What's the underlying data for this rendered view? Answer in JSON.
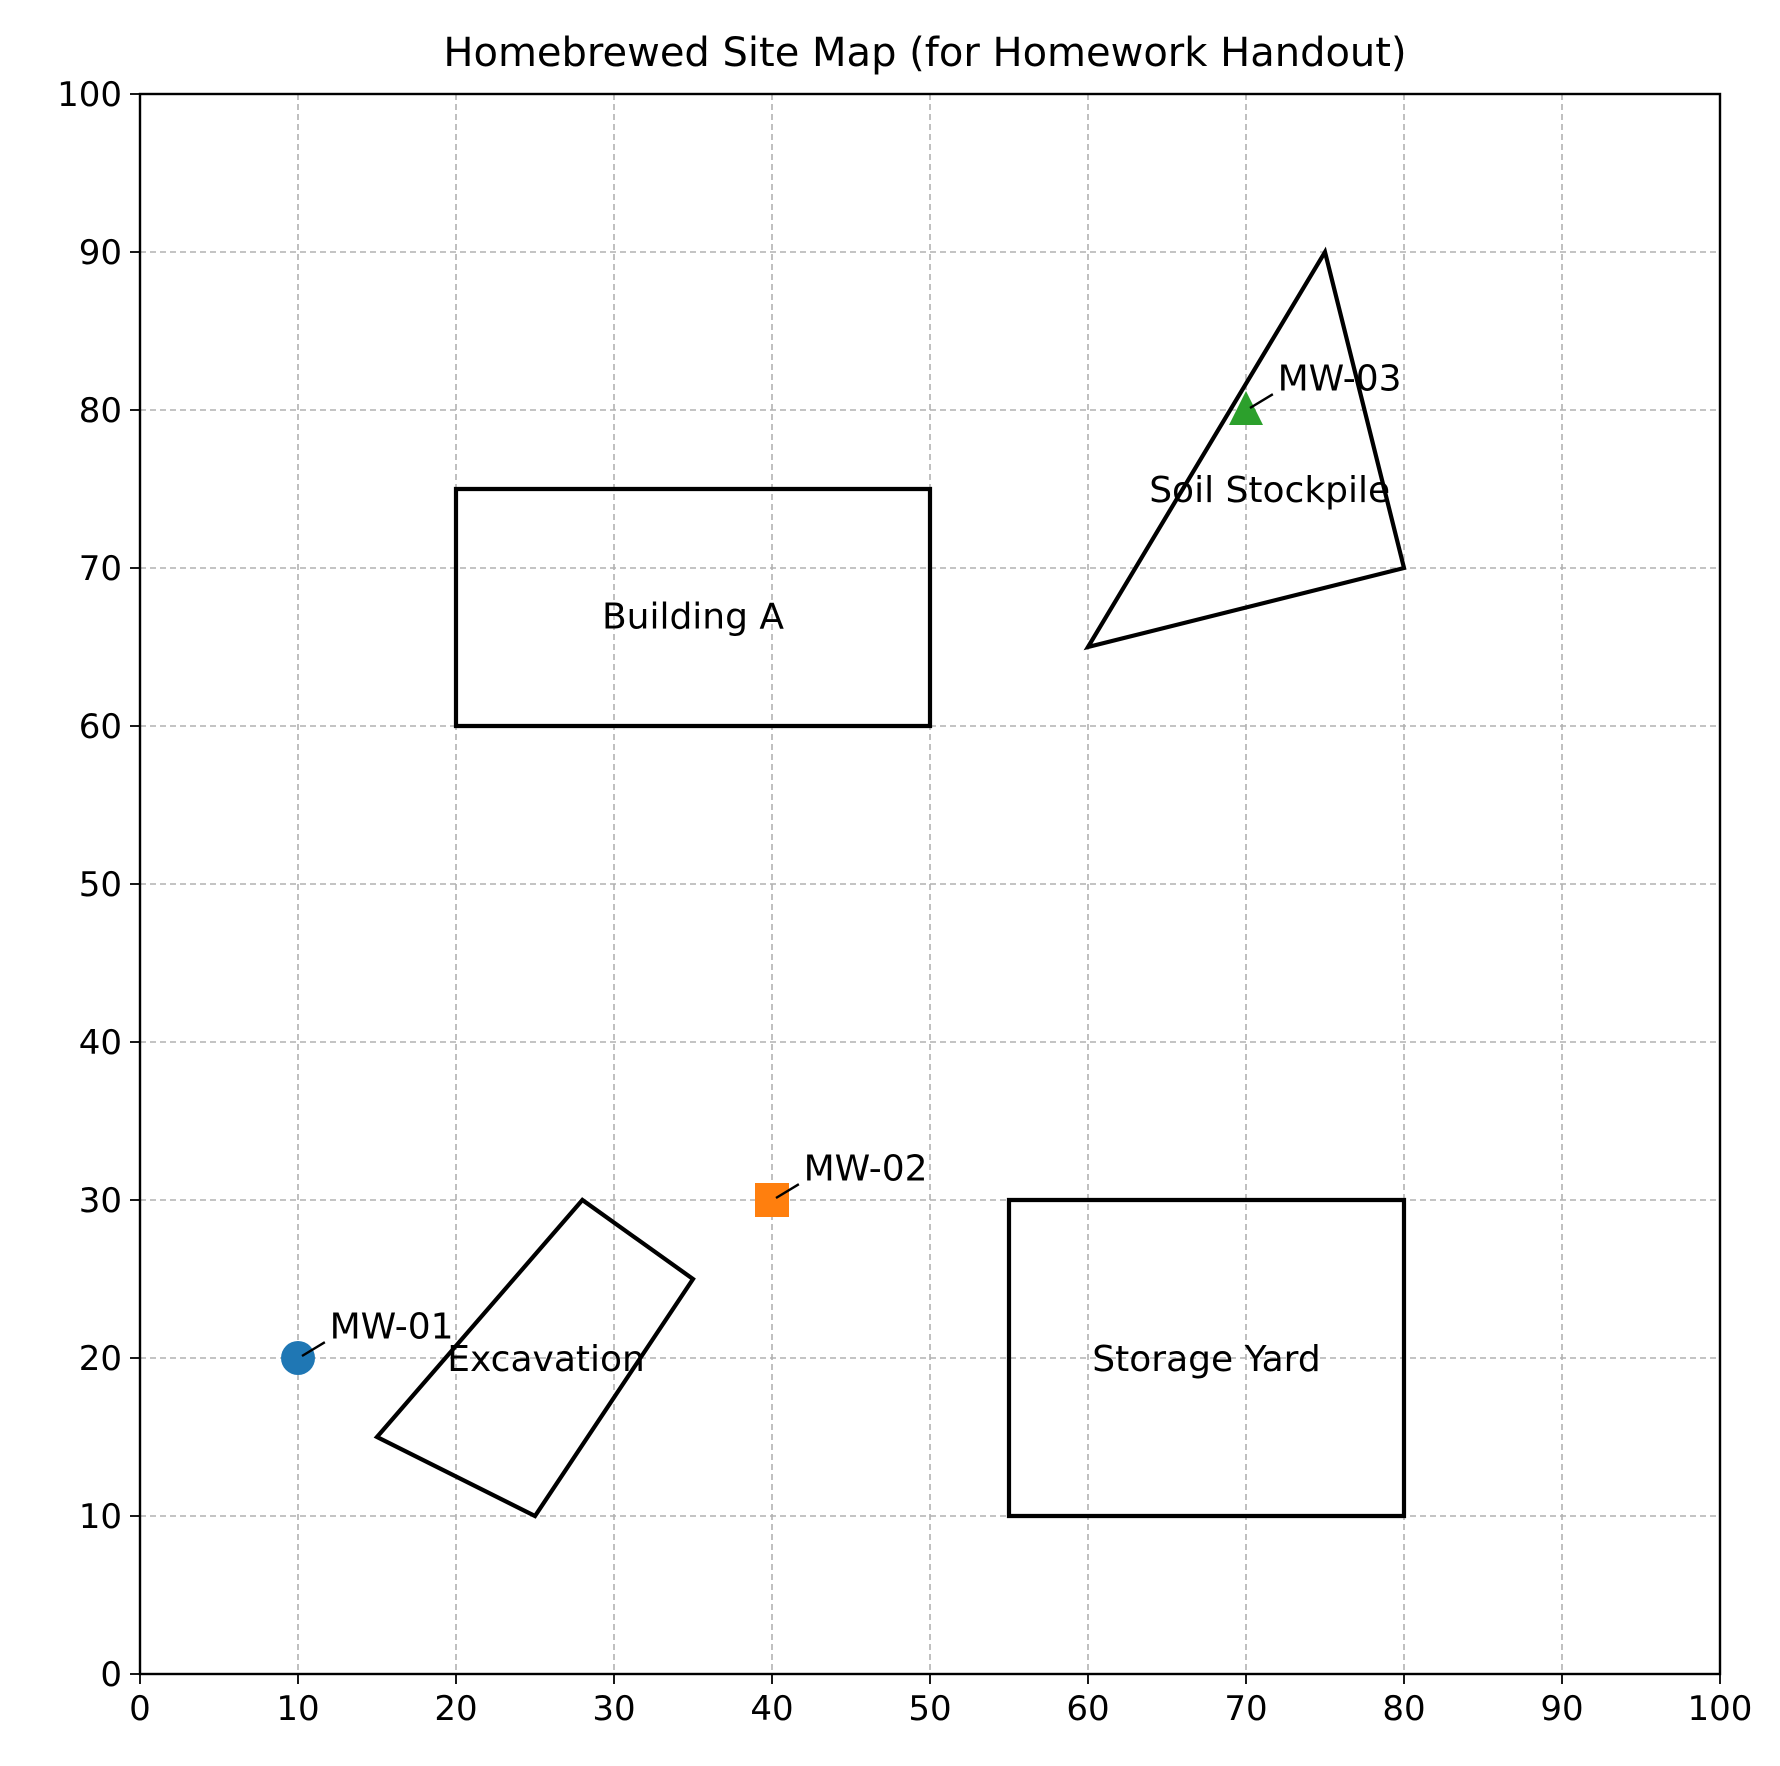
{
  "chart_data": {
    "type": "scatter",
    "title": "Homebrewed Site Map (for Homework Handout)",
    "xlabel": "",
    "ylabel": "",
    "xlim": [
      0,
      100
    ],
    "ylim": [
      0,
      100
    ],
    "xticks": [
      0,
      10,
      20,
      30,
      40,
      50,
      60,
      70,
      80,
      90,
      100
    ],
    "yticks": [
      0,
      10,
      20,
      30,
      40,
      50,
      60,
      70,
      80,
      90,
      100
    ],
    "grid": true,
    "features": [
      {
        "label": "Building A",
        "points": [
          [
            20,
            60
          ],
          [
            50,
            60
          ],
          [
            50,
            75
          ],
          [
            20,
            75
          ]
        ],
        "label_at": [
          35,
          67
        ]
      },
      {
        "label": "Soil Stockpile",
        "points": [
          [
            60,
            65
          ],
          [
            80,
            70
          ],
          [
            75,
            90
          ]
        ],
        "label_at": [
          71.5,
          75
        ]
      },
      {
        "label": "Excavation",
        "points": [
          [
            15,
            15
          ],
          [
            25,
            10
          ],
          [
            35,
            25
          ],
          [
            28,
            30
          ]
        ],
        "label_at": [
          25.7,
          20
        ]
      },
      {
        "label": "Storage Yard",
        "points": [
          [
            55,
            10
          ],
          [
            80,
            10
          ],
          [
            80,
            30
          ],
          [
            55,
            30
          ]
        ],
        "label_at": [
          67.5,
          20
        ]
      }
    ],
    "wells": [
      {
        "label": "MW-01",
        "x": 10,
        "y": 20,
        "marker": "circle",
        "color": "#1f77b4"
      },
      {
        "label": "MW-02",
        "x": 40,
        "y": 30,
        "marker": "square",
        "color": "#ff7f0e"
      },
      {
        "label": "MW-03",
        "x": 70,
        "y": 80,
        "marker": "triangle",
        "color": "#2ca02c"
      }
    ]
  }
}
